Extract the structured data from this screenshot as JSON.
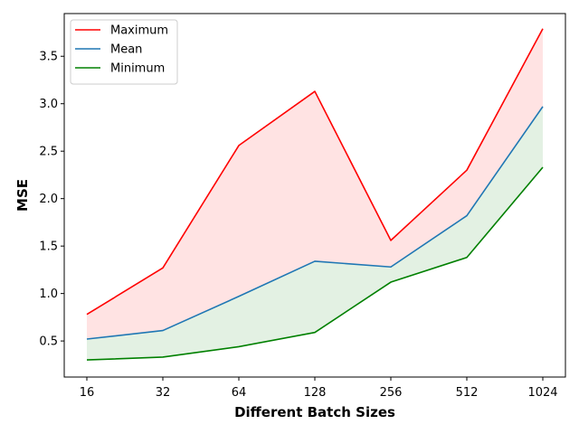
{
  "chart_data": {
    "type": "line",
    "xlabel": "Different Batch Sizes",
    "ylabel": "MSE",
    "categories": [
      "16",
      "32",
      "64",
      "128",
      "256",
      "512",
      "1024"
    ],
    "ylim": [
      0.12,
      3.95
    ],
    "yticks": [
      0.5,
      1.0,
      1.5,
      2.0,
      2.5,
      3.0,
      3.5
    ],
    "ytick_labels": [
      "0.5",
      "1.0",
      "1.5",
      "2.0",
      "2.5",
      "3.0",
      "3.5"
    ],
    "grid": false,
    "legend_position": "top-left",
    "series": [
      {
        "name": "Maximum",
        "color": "#ff0000",
        "values": [
          0.78,
          1.27,
          2.56,
          3.13,
          1.56,
          2.3,
          3.79
        ]
      },
      {
        "name": "Mean",
        "color": "#1f77b4",
        "values": [
          0.52,
          0.61,
          0.97,
          1.34,
          1.28,
          1.82,
          2.97
        ]
      },
      {
        "name": "Minimum",
        "color": "#008000",
        "values": [
          0.3,
          0.33,
          0.44,
          0.59,
          1.12,
          1.38,
          2.33
        ]
      }
    ],
    "fills": [
      {
        "between": [
          "Mean",
          "Maximum"
        ],
        "color": "#ff0000",
        "opacity": 0.11
      },
      {
        "between": [
          "Minimum",
          "Mean"
        ],
        "color": "#008000",
        "opacity": 0.11
      }
    ]
  }
}
